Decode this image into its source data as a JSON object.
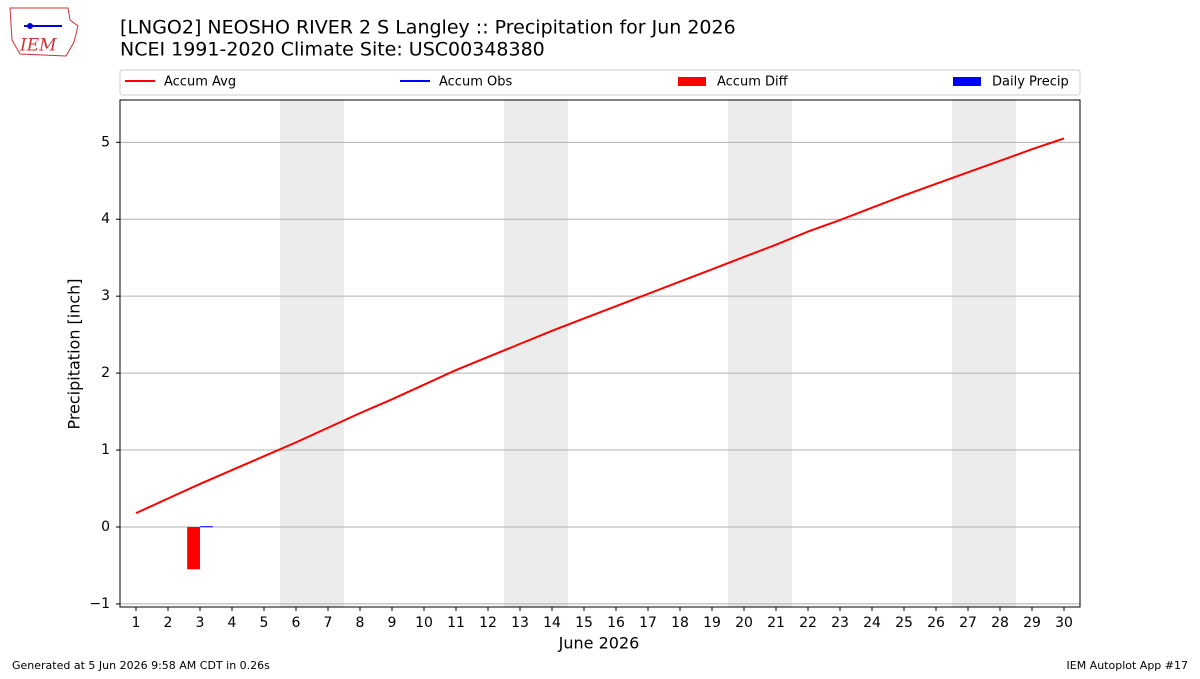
{
  "chart_data": {
    "type": "line",
    "title": "[LNGO2] NEOSHO RIVER 2 S Langley :: Precipitation for Jun 2026",
    "subtitle": "NCEI 1991-2020 Climate Site: USC00348380",
    "logo_text": "IEM",
    "x_label": "June 2026",
    "y_label": "Precipitation [inch]",
    "footer_left": "Generated at 5 Jun 2026 9:58 AM CDT in 0.26s",
    "footer_right": "IEM Autoplot App #17",
    "x": [
      1,
      2,
      3,
      4,
      5,
      6,
      7,
      8,
      9,
      10,
      11,
      12,
      13,
      14,
      15,
      16,
      17,
      18,
      19,
      20,
      21,
      22,
      23,
      24,
      25,
      26,
      27,
      28,
      29,
      30
    ],
    "xlim": [
      0.5,
      30.5
    ],
    "xticks": [
      1,
      2,
      3,
      4,
      5,
      6,
      7,
      8,
      9,
      10,
      11,
      12,
      13,
      14,
      15,
      16,
      17,
      18,
      19,
      20,
      21,
      22,
      23,
      24,
      25,
      26,
      27,
      28,
      29,
      30
    ],
    "ylim": [
      -1.04,
      5.55
    ],
    "yticks": [
      {
        "value": -1,
        "label": "−1"
      },
      0,
      1,
      2,
      3,
      4,
      5
    ],
    "grid": true,
    "weekend_bands": [
      [
        5.5,
        7.5
      ],
      [
        12.5,
        14.5
      ],
      [
        19.5,
        21.5
      ],
      [
        26.5,
        28.5
      ]
    ],
    "series": [
      {
        "name": "Accum Avg",
        "type": "line",
        "color": "#ff0000",
        "values": [
          0.18,
          0.37,
          0.56,
          0.74,
          0.92,
          1.1,
          1.29,
          1.48,
          1.66,
          1.85,
          2.04,
          2.21,
          2.38,
          2.55,
          2.71,
          2.87,
          3.03,
          3.19,
          3.35,
          3.51,
          3.67,
          3.84,
          3.99,
          4.15,
          4.31,
          4.46,
          4.61,
          4.76,
          4.91,
          5.05
        ]
      },
      {
        "name": "Accum Obs",
        "type": "line",
        "color": "#0000ff",
        "values": [
          null,
          null,
          0.01,
          null,
          null,
          null,
          null,
          null,
          null,
          null,
          null,
          null,
          null,
          null,
          null,
          null,
          null,
          null,
          null,
          null,
          null,
          null,
          null,
          null,
          null,
          null,
          null,
          null,
          null,
          null
        ]
      },
      {
        "name": "Accum Diff",
        "type": "bar",
        "color": "#ff0000",
        "values": [
          null,
          null,
          -0.55,
          null,
          null,
          null,
          null,
          null,
          null,
          null,
          null,
          null,
          null,
          null,
          null,
          null,
          null,
          null,
          null,
          null,
          null,
          null,
          null,
          null,
          null,
          null,
          null,
          null,
          null,
          null
        ]
      },
      {
        "name": "Daily Precip",
        "type": "bar",
        "color": "#0000ff",
        "values": [
          null,
          null,
          0.01,
          null,
          null,
          null,
          null,
          null,
          null,
          null,
          null,
          null,
          null,
          null,
          null,
          null,
          null,
          null,
          null,
          null,
          null,
          null,
          null,
          null,
          null,
          null,
          null,
          null,
          null,
          null
        ]
      }
    ]
  }
}
